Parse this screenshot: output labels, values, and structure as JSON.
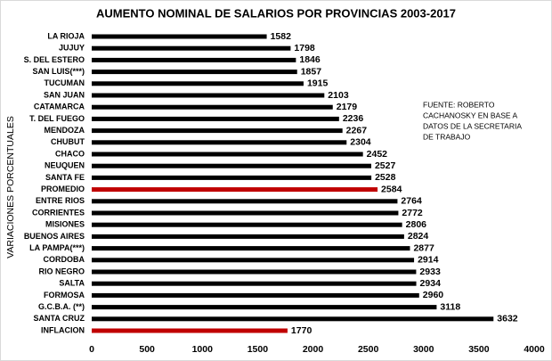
{
  "chart_data": {
    "type": "hbar",
    "title": "AUMENTO NOMINAL DE SALARIOS POR PROVINCIAS 2003-2017",
    "y_label": "VARIACIONES PORCENTUALES",
    "annotation": [
      "FUENTE: ROBERTO",
      "CACHANOSKY EN BASE A",
      "DATOS DE LA SECRETARIA",
      "DE TRABAJO"
    ],
    "categories": [
      "LA RIOJA",
      "JUJUY",
      "S. DEL ESTERO",
      "SAN LUIS(***)",
      "TUCUMAN",
      "SAN JUAN",
      "CATAMARCA",
      "T. DEL FUEGO",
      "MENDOZA",
      "CHUBUT",
      "CHACO",
      "NEUQUEN",
      "SANTA FE",
      "PROMEDIO",
      "ENTRE RIOS",
      "CORRIENTES",
      "MISIONES",
      "BUENOS AIRES",
      "LA PAMPA(***)",
      "CORDOBA",
      "RIO NEGRO",
      "SALTA",
      "FORMOSA",
      "G.C.B.A. (**)",
      "SANTA CRUZ",
      "INFLACION"
    ],
    "values": [
      1582,
      1798,
      1846,
      1857,
      1915,
      2103,
      2179,
      2236,
      2267,
      2304,
      2452,
      2527,
      2528,
      2584,
      2764,
      2772,
      2806,
      2824,
      2877,
      2914,
      2933,
      2934,
      2960,
      3118,
      3632,
      1770
    ],
    "colors": [
      "#000000",
      "#000000",
      "#000000",
      "#000000",
      "#000000",
      "#000000",
      "#000000",
      "#000000",
      "#000000",
      "#000000",
      "#000000",
      "#000000",
      "#000000",
      "#c00000",
      "#000000",
      "#000000",
      "#000000",
      "#000000",
      "#000000",
      "#000000",
      "#000000",
      "#000000",
      "#000000",
      "#000000",
      "#000000",
      "#c00000"
    ],
    "xlim": [
      0,
      4000
    ],
    "xticks": [
      0,
      500,
      1000,
      1500,
      2000,
      2500,
      3000,
      3500,
      4000
    ],
    "grid": false
  }
}
